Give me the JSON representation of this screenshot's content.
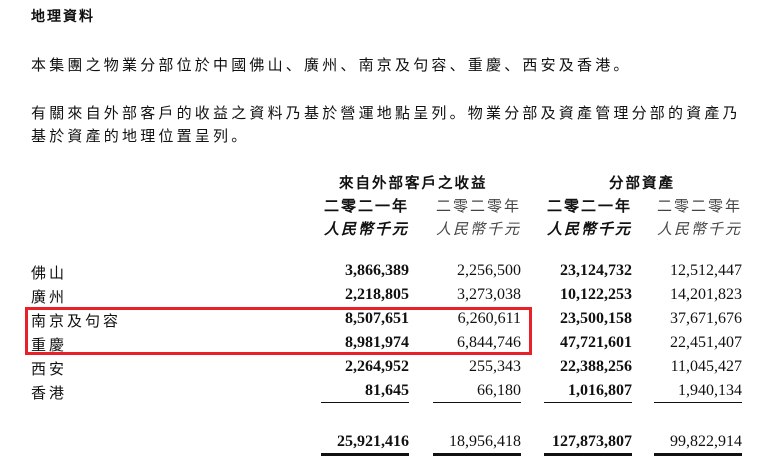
{
  "heading": "地理資料",
  "paragraph1": "本集團之物業分部位於中國佛山、廣州、南京及句容、重慶、西安及香港。",
  "paragraph2_line1": "有關來自外部客戶的收益之資料乃基於營運地點呈列。物業分部及資產管理分部的資產乃",
  "paragraph2_line2": "基於資產的地理位置呈列。",
  "table": {
    "group_headers": [
      "來自外部客戶之收益",
      "分部資產"
    ],
    "year_headers": [
      "二零二一年",
      "二零二零年",
      "二零二一年",
      "二零二零年"
    ],
    "unit_headers": [
      "人民幣千元",
      "人民幣千元",
      "人民幣千元",
      "人民幣千元"
    ],
    "rows": [
      {
        "label": "佛山",
        "values": [
          "3,866,389",
          "2,256,500",
          "23,124,732",
          "12,512,447"
        ]
      },
      {
        "label": "廣州",
        "values": [
          "2,218,805",
          "3,273,038",
          "10,122,253",
          "14,201,823"
        ]
      },
      {
        "label": "南京及句容",
        "values": [
          "8,507,651",
          "6,260,611",
          "23,500,158",
          "37,671,676"
        ]
      },
      {
        "label": "重慶",
        "values": [
          "8,981,974",
          "6,844,746",
          "47,721,601",
          "22,451,407"
        ]
      },
      {
        "label": "西安",
        "values": [
          "2,264,952",
          "255,343",
          "22,388,256",
          "11,045,427"
        ]
      },
      {
        "label": "香港",
        "values": [
          "81,645",
          "66,180",
          "1,016,807",
          "1,940,134"
        ]
      }
    ],
    "totals": [
      "25,921,416",
      "18,956,418",
      "127,873,807",
      "99,822,914"
    ],
    "highlighted_rows": [
      "南京及句容",
      "重慶"
    ],
    "highlight_color": "#e8202a"
  }
}
